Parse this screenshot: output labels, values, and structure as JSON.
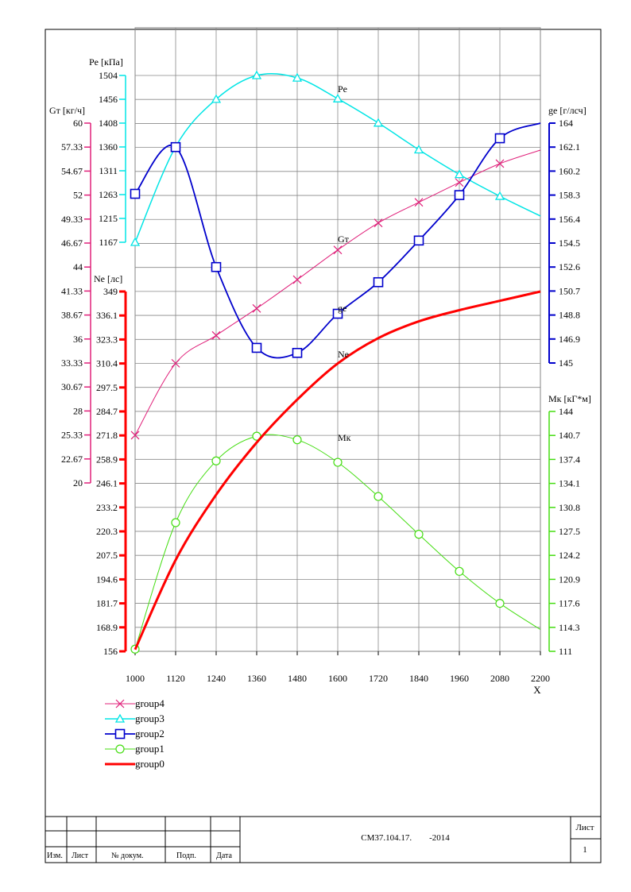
{
  "chart_data": {
    "type": "line",
    "xlabel": "X",
    "x_ticks": [
      "1000",
      "1120",
      "1240",
      "1360",
      "1480",
      "1600",
      "1720",
      "1840",
      "1960",
      "2080",
      "2200"
    ],
    "x_range": [
      1000,
      2200
    ],
    "grid": true,
    "legend_position": "bottom-left",
    "axes": {
      "pe": {
        "label": "Pe [кПа]",
        "color": "#00e5e5",
        "range": [
          1167,
          1504
        ],
        "ticks": [
          "1167",
          "1215",
          "1263",
          "1311",
          "1360",
          "1408",
          "1456",
          "1504"
        ]
      },
      "gt": {
        "label": "Gт [кг/ч]",
        "color": "#e0207a",
        "range": [
          20,
          60
        ],
        "ticks": [
          "20",
          "22.67",
          "25.33",
          "28",
          "30.67",
          "33.33",
          "36",
          "38.67",
          "41.33",
          "44",
          "46.67",
          "49.33",
          "52",
          "54.67",
          "57.33",
          "60"
        ]
      },
      "ne": {
        "label": "Ne [лс]",
        "color": "#ff0000",
        "range": [
          156,
          349
        ],
        "ticks": [
          "156",
          "168.9",
          "181.7",
          "194.6",
          "207.5",
          "220.3",
          "233.2",
          "246.1",
          "258.9",
          "271.8",
          "284.7",
          "297.5",
          "310.4",
          "323.3",
          "336.1",
          "349"
        ]
      },
      "ge": {
        "label": "ge [г/лсч]",
        "color": "#0000cc",
        "range": [
          145,
          164
        ],
        "ticks": [
          "145",
          "146.9",
          "148.8",
          "150.7",
          "152.6",
          "154.5",
          "156.4",
          "158.3",
          "160.2",
          "162.1",
          "164"
        ]
      },
      "mk": {
        "label": "Мк [кГ*м]",
        "color": "#44dd11",
        "range": [
          111,
          144
        ],
        "ticks": [
          "111",
          "114.3",
          "117.6",
          "120.9",
          "124.2",
          "127.5",
          "130.8",
          "134.1",
          "137.4",
          "140.7",
          "144"
        ]
      }
    },
    "series": [
      {
        "name": "group4",
        "label": "Gт",
        "axis": "gt",
        "color": "#e0207a",
        "marker": "x",
        "width": 1,
        "x": [
          1000,
          1120,
          1240,
          1360,
          1480,
          1600,
          1720,
          1840,
          1960,
          2080,
          2200
        ],
        "y": [
          25.3,
          33.3,
          36.4,
          39.4,
          42.6,
          45.9,
          48.9,
          51.2,
          53.4,
          55.5,
          57.0
        ],
        "marker_count": 10
      },
      {
        "name": "group3",
        "label": "Pe",
        "axis": "pe",
        "color": "#00e5e5",
        "marker": "triangle",
        "width": 1.5,
        "x": [
          1000,
          1120,
          1240,
          1360,
          1480,
          1600,
          1720,
          1840,
          1960,
          2080,
          2200
        ],
        "y": [
          1167,
          1360,
          1456,
          1504,
          1499,
          1457,
          1408,
          1354,
          1304,
          1260,
          1220
        ],
        "marker_count": 10
      },
      {
        "name": "group2",
        "label": "ge",
        "axis": "ge",
        "color": "#0000cc",
        "marker": "square",
        "width": 1.8,
        "x": [
          1000,
          1120,
          1240,
          1360,
          1480,
          1600,
          1720,
          1840,
          1960,
          2080,
          2200
        ],
        "y": [
          158.4,
          162.1,
          152.6,
          146.2,
          145.8,
          148.9,
          151.4,
          154.7,
          158.3,
          162.8,
          164.0
        ],
        "marker_count": 10
      },
      {
        "name": "group1",
        "label": "Мк",
        "axis": "mk",
        "color": "#44dd11",
        "marker": "circle",
        "width": 1,
        "x": [
          1000,
          1120,
          1240,
          1360,
          1480,
          1600,
          1720,
          1840,
          1960,
          2080,
          2200
        ],
        "y": [
          111.3,
          128.7,
          137.2,
          140.6,
          140.1,
          137.0,
          132.3,
          127.1,
          122.0,
          117.6,
          114.0
        ],
        "marker_count": 10
      },
      {
        "name": "group0",
        "label": "Ne",
        "axis": "ne",
        "color": "#ff0000",
        "marker": "none",
        "width": 3,
        "x": [
          1000,
          1120,
          1240,
          1360,
          1480,
          1600,
          1720,
          1840,
          1960,
          2080,
          2200
        ],
        "y": [
          157,
          205,
          240,
          268,
          291,
          310.4,
          324,
          333,
          339,
          344,
          349
        ],
        "marker_count": 0
      }
    ]
  },
  "title_block": {
    "headers": [
      "Изм.",
      "Лист",
      "№ докум.",
      "Подп.",
      "Дата"
    ],
    "designation": "СМ37.104.17.        -2014",
    "sheet_label": "Лист",
    "sheet_number": "1"
  }
}
